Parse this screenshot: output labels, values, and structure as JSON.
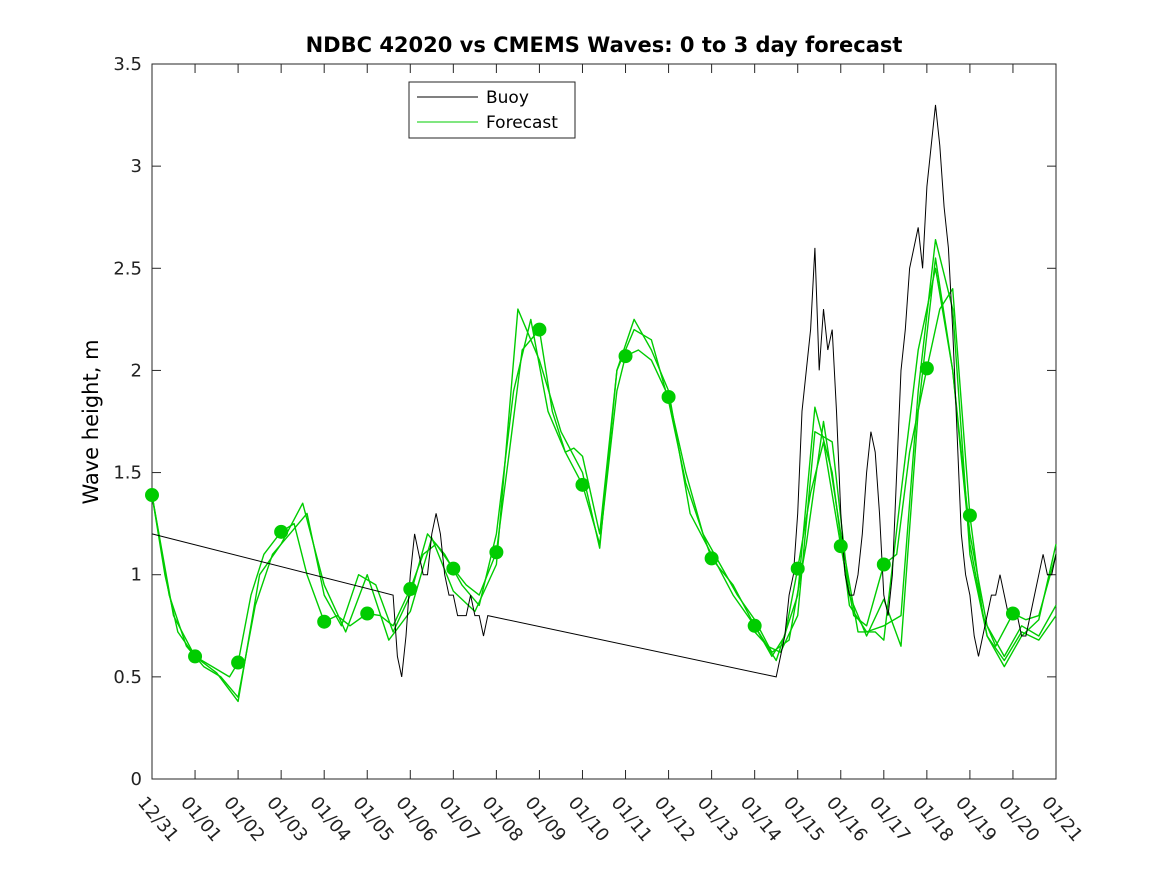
{
  "chart_data": {
    "type": "line",
    "title": "NDBC 42020 vs CMEMS Waves: 0 to 3 day forecast",
    "xlabel": "",
    "ylabel": "Wave height, m",
    "xlim": [
      0,
      21
    ],
    "ylim": [
      0,
      3.5
    ],
    "yticks": [
      0,
      0.5,
      1,
      1.5,
      2,
      2.5,
      3,
      3.5
    ],
    "ytick_labels": [
      "0",
      "0.5",
      "1",
      "1.5",
      "2",
      "2.5",
      "3",
      "3.5"
    ],
    "xticks": [
      0,
      1,
      2,
      3,
      4,
      5,
      6,
      7,
      8,
      9,
      10,
      11,
      12,
      13,
      14,
      15,
      16,
      17,
      18,
      19,
      20,
      21
    ],
    "xtick_labels": [
      "12/31",
      "01/01",
      "01/02",
      "01/03",
      "01/04",
      "01/05",
      "01/06",
      "01/07",
      "01/08",
      "01/09",
      "01/10",
      "01/11",
      "01/12",
      "01/13",
      "01/14",
      "01/15",
      "01/16",
      "01/17",
      "01/18",
      "01/19",
      "01/20",
      "01/21"
    ],
    "legend": {
      "placement": "top-left",
      "entries": [
        {
          "label": "Buoy",
          "color": "#000000"
        },
        {
          "label": "Forecast",
          "color": "#00cc00"
        }
      ]
    },
    "series": [
      {
        "name": "Buoy",
        "color": "#000000",
        "x": [
          0,
          5.6,
          5.7,
          5.8,
          5.9,
          6.0,
          6.1,
          6.2,
          6.3,
          6.4,
          6.5,
          6.6,
          6.7,
          6.8,
          6.9,
          7.0,
          7.1,
          7.2,
          7.3,
          7.4,
          7.5,
          7.6,
          7.7,
          7.8,
          14.5,
          14.6,
          14.7,
          14.8,
          14.9,
          15.0,
          15.1,
          15.2,
          15.3,
          15.4,
          15.5,
          15.6,
          15.7,
          15.8,
          15.9,
          16.0,
          16.1,
          16.2,
          16.3,
          16.4,
          16.5,
          16.6,
          16.7,
          16.8,
          16.9,
          17.0,
          17.1,
          17.2,
          17.3,
          17.4,
          17.5,
          17.6,
          17.7,
          17.8,
          17.9,
          18.0,
          18.1,
          18.2,
          18.3,
          18.4,
          18.5,
          18.6,
          18.7,
          18.8,
          18.9,
          19.0,
          19.1,
          19.2,
          19.3,
          19.4,
          19.5,
          19.6,
          19.7,
          19.8,
          19.9,
          20.0,
          20.1,
          20.2,
          20.3,
          20.4,
          20.5,
          20.6,
          20.7,
          20.8,
          20.9,
          21.0
        ],
        "y": [
          1.2,
          0.9,
          0.6,
          0.5,
          0.7,
          1.0,
          1.2,
          1.1,
          1.0,
          1.0,
          1.2,
          1.3,
          1.2,
          1.0,
          0.9,
          0.9,
          0.8,
          0.8,
          0.8,
          0.9,
          0.8,
          0.8,
          0.7,
          0.8,
          0.5,
          0.6,
          0.7,
          0.9,
          1.0,
          1.3,
          1.8,
          2.0,
          2.2,
          2.6,
          2.0,
          2.3,
          2.1,
          2.2,
          1.8,
          1.3,
          1.0,
          0.9,
          0.9,
          1.0,
          1.2,
          1.5,
          1.7,
          1.6,
          1.3,
          0.9,
          0.8,
          1.0,
          1.5,
          2.0,
          2.2,
          2.5,
          2.6,
          2.7,
          2.5,
          2.9,
          3.1,
          3.3,
          3.1,
          2.8,
          2.6,
          2.2,
          1.7,
          1.2,
          1.0,
          0.9,
          0.7,
          0.6,
          0.7,
          0.8,
          0.9,
          0.9,
          1.0,
          0.9,
          0.8,
          0.8,
          0.8,
          0.7,
          0.7,
          0.8,
          0.9,
          1.0,
          1.1,
          1.0,
          1.0,
          1.1
        ]
      },
      {
        "name": "Forecast",
        "color": "#00cc00",
        "runs": [
          {
            "x": [
              0.0,
              0.3,
              0.6,
              1.0,
              1.4,
              1.8,
              2.0,
              2.3,
              2.6,
              3.0,
              3.3,
              3.6,
              4.0,
              4.3,
              4.6,
              5.0,
              5.3,
              5.6,
              6.0,
              6.3,
              6.6,
              7.0,
              7.3,
              7.6,
              8.0,
              8.3,
              8.6,
              9.0,
              9.3,
              9.6,
              10.0,
              10.4,
              10.8,
              11.0,
              11.3,
              11.6,
              12.0,
              12.4,
              12.8,
              13.0,
              13.5,
              14.0,
              14.4,
              14.7,
              15.0,
              15.3,
              15.6,
              16.0,
              16.3,
              16.6,
              17.0,
              17.3,
              17.6,
              18.0,
              18.3,
              18.6,
              19.0,
              19.3,
              19.6,
              20.0,
              20.3,
              20.6,
              21.0
            ],
            "y": [
              1.39,
              1.0,
              0.72,
              0.6,
              0.55,
              0.5,
              0.57,
              0.9,
              1.1,
              1.21,
              1.25,
              1.0,
              0.77,
              0.8,
              0.75,
              0.81,
              0.8,
              0.75,
              0.93,
              1.1,
              1.15,
              1.03,
              0.95,
              0.9,
              1.11,
              1.6,
              2.1,
              2.2,
              1.8,
              1.6,
              1.44,
              1.15,
              1.9,
              2.07,
              2.1,
              2.05,
              1.87,
              1.5,
              1.2,
              1.08,
              0.95,
              0.75,
              0.6,
              0.7,
              1.03,
              1.4,
              1.65,
              1.14,
              0.8,
              0.75,
              1.05,
              1.1,
              1.6,
              2.01,
              2.3,
              2.4,
              1.29,
              0.8,
              0.65,
              0.81,
              0.78,
              0.8,
              1.1
            ]
          },
          {
            "x": [
              0.0,
              0.4,
              0.8,
              1.2,
              1.6,
              2.0,
              2.4,
              2.8,
              3.2,
              3.6,
              4.0,
              4.4,
              4.8,
              5.2,
              5.6,
              6.0,
              6.4,
              6.8,
              7.2,
              7.6,
              8.0,
              8.4,
              8.8,
              9.2,
              9.6,
              9.8,
              10.0,
              10.4,
              10.8,
              11.2,
              11.6,
              12.0,
              12.4,
              12.8,
              13.2,
              13.6,
              14.0,
              14.4,
              14.8,
              15.2,
              15.6,
              16.0,
              16.4,
              16.8,
              17.0,
              17.4,
              17.8,
              18.2,
              18.6,
              19.0,
              19.4,
              19.8,
              20.2,
              20.6,
              21.0
            ],
            "y": [
              1.39,
              0.9,
              0.65,
              0.55,
              0.5,
              0.4,
              0.85,
              1.1,
              1.2,
              1.3,
              0.9,
              0.75,
              1.0,
              0.95,
              0.72,
              0.9,
              1.2,
              1.1,
              0.95,
              0.85,
              1.2,
              1.9,
              2.25,
              1.8,
              1.6,
              1.62,
              1.58,
              1.2,
              2.0,
              2.2,
              2.15,
              1.85,
              1.45,
              1.2,
              1.05,
              0.9,
              0.78,
              0.62,
              0.68,
              1.15,
              1.75,
              1.2,
              0.72,
              0.72,
              0.68,
              1.4,
              2.1,
              2.5,
              2.0,
              1.2,
              0.75,
              0.6,
              0.75,
              0.7,
              0.85
            ]
          },
          {
            "x": [
              0.0,
              0.5,
              1.0,
              1.5,
              2.0,
              2.5,
              3.0,
              3.5,
              4.0,
              4.5,
              5.0,
              5.5,
              6.0,
              6.5,
              7.0,
              7.5,
              8.0,
              8.5,
              9.0,
              9.5,
              10.0,
              10.4,
              10.8,
              11.2,
              11.6,
              12.0,
              12.5,
              13.0,
              13.5,
              14.0,
              14.5,
              15.0,
              15.4,
              15.8,
              16.2,
              16.6,
              17.0,
              17.4,
              17.8,
              18.2,
              18.6,
              19.0,
              19.4,
              19.8,
              20.2,
              20.6,
              21.0
            ],
            "y": [
              1.39,
              0.8,
              0.6,
              0.52,
              0.38,
              1.0,
              1.15,
              1.35,
              0.95,
              0.72,
              1.0,
              0.68,
              0.82,
              1.18,
              0.92,
              0.82,
              1.05,
              2.3,
              2.05,
              1.7,
              1.5,
              1.13,
              2.0,
              2.25,
              2.1,
              1.9,
              1.3,
              1.1,
              0.9,
              0.75,
              0.58,
              0.9,
              1.82,
              1.5,
              0.85,
              0.72,
              0.75,
              0.8,
              1.9,
              2.64,
              2.3,
              1.1,
              0.7,
              0.55,
              0.7,
              0.78,
              1.15
            ]
          },
          {
            "x": [
              14.0,
              14.3,
              14.6,
              15.0,
              15.4,
              15.8,
              16.2,
              16.6,
              17.0,
              17.4,
              17.8,
              18.2,
              18.6,
              19.0,
              19.4,
              19.8,
              20.2,
              20.6,
              21.0
            ],
            "y": [
              0.72,
              0.65,
              0.62,
              0.8,
              1.7,
              1.65,
              0.9,
              0.7,
              0.88,
              0.65,
              1.8,
              2.55,
              2.0,
              1.15,
              0.7,
              0.58,
              0.72,
              0.68,
              0.8
            ]
          }
        ],
        "markers": {
          "x": [
            0,
            1,
            2,
            3,
            4,
            5,
            6,
            7,
            8,
            9,
            10,
            11,
            12,
            13,
            14,
            15,
            16,
            17,
            18,
            19,
            20
          ],
          "y": [
            1.39,
            0.6,
            0.57,
            1.21,
            0.77,
            0.81,
            0.93,
            1.03,
            1.11,
            2.2,
            1.44,
            2.07,
            1.87,
            1.08,
            0.75,
            1.03,
            1.14,
            1.05,
            2.01,
            1.29,
            0.81
          ]
        }
      }
    ]
  }
}
